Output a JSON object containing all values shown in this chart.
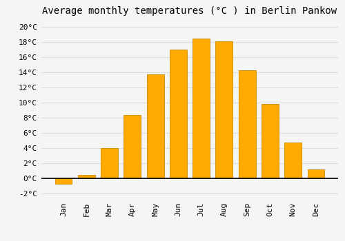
{
  "title": "Average monthly temperatures (°C ) in Berlin Pankow",
  "months": [
    "Jan",
    "Feb",
    "Mar",
    "Apr",
    "May",
    "Jun",
    "Jul",
    "Aug",
    "Sep",
    "Oct",
    "Nov",
    "Dec"
  ],
  "values": [
    -0.7,
    0.5,
    4.0,
    8.4,
    13.7,
    17.0,
    18.5,
    18.1,
    14.3,
    9.8,
    4.8,
    1.2
  ],
  "bar_color": "#FFAA00",
  "bar_edge_color": "#CC8800",
  "background_color": "#F5F5F5",
  "grid_color": "#DDDDDD",
  "ylim": [
    -2.5,
    21
  ],
  "yticks": [
    -2,
    0,
    2,
    4,
    6,
    8,
    10,
    12,
    14,
    16,
    18,
    20
  ],
  "title_fontsize": 10,
  "tick_fontsize": 8,
  "font_family": "monospace"
}
